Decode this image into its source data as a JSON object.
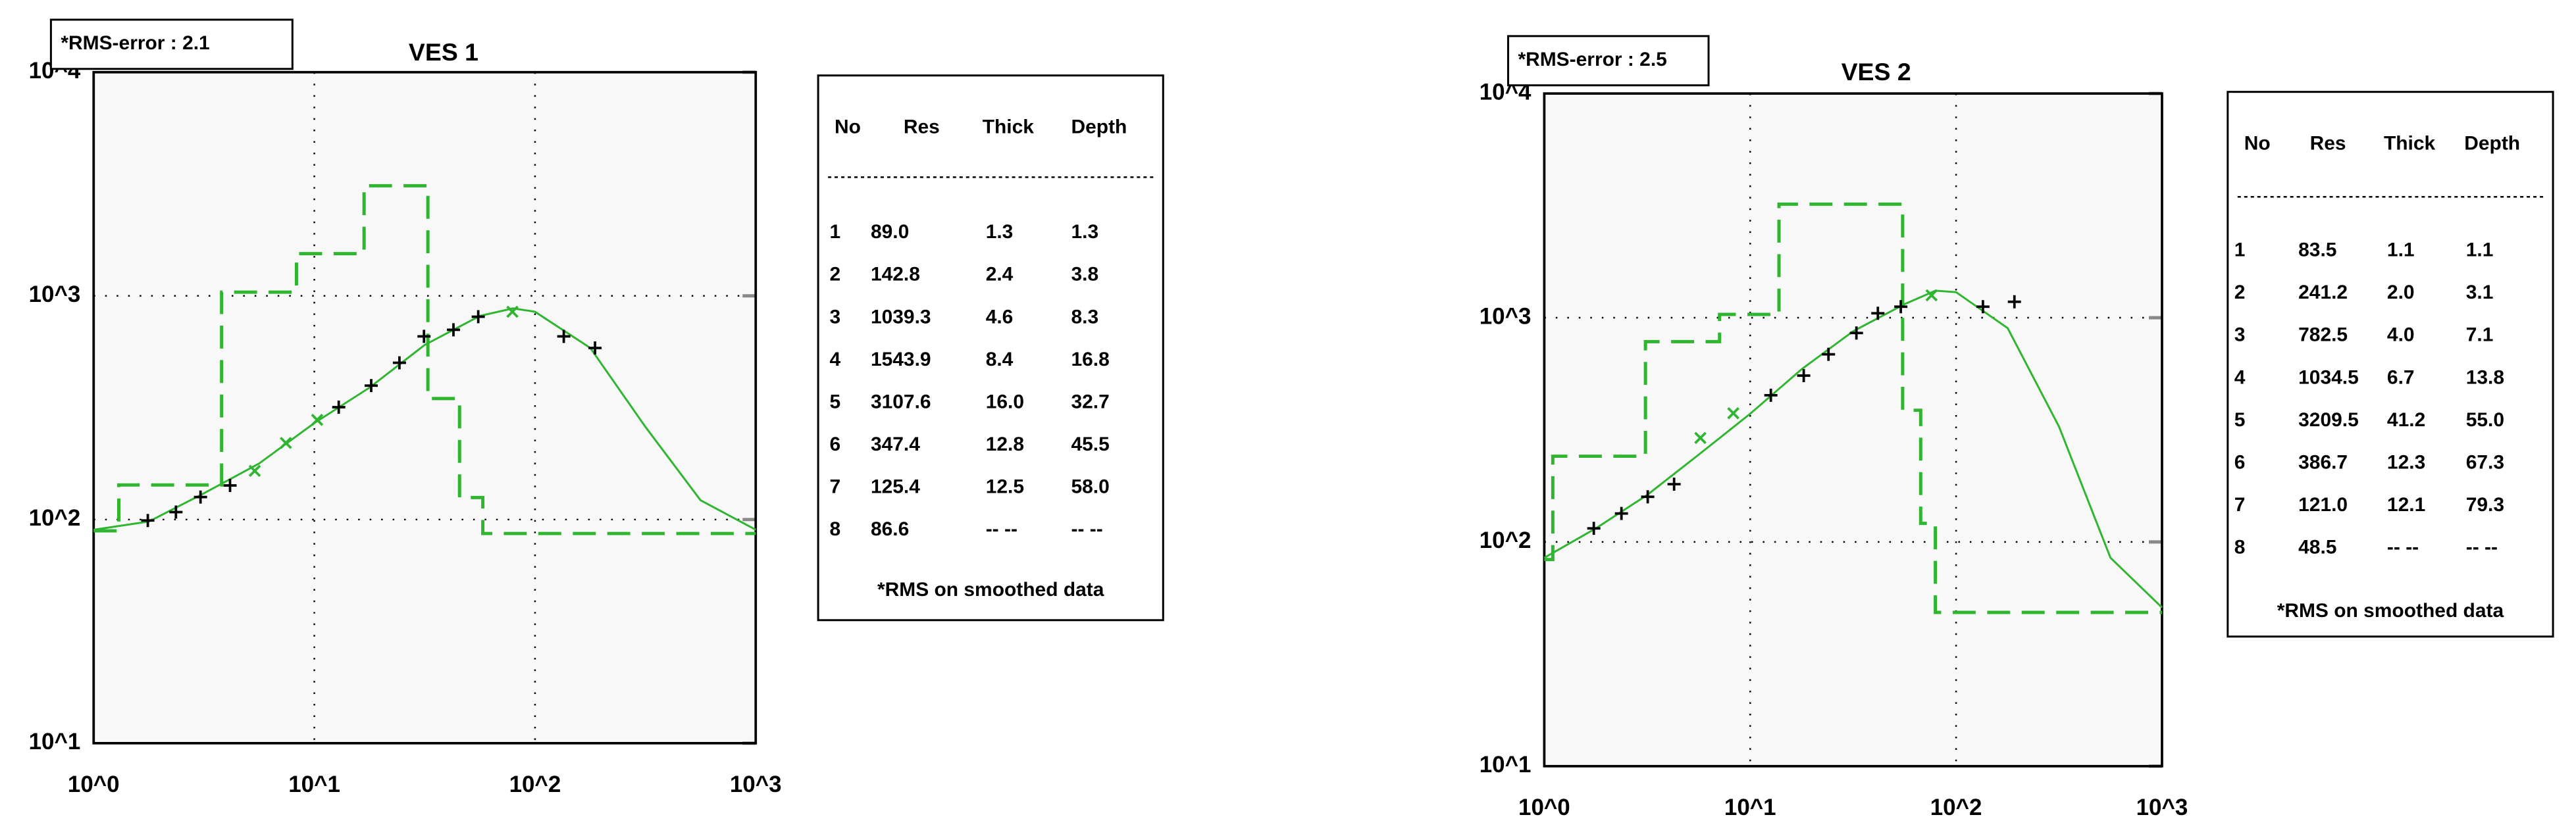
{
  "chart_data": [
    {
      "type": "line",
      "title": "VES 1",
      "annotation": "*RMS-error : 2.1",
      "xscale": "log",
      "yscale": "log",
      "grid": true,
      "xlim": [
        1,
        1000
      ],
      "ylim": [
        10,
        10000
      ],
      "xticks": [
        {
          "value": 1,
          "label": "10^0"
        },
        {
          "value": 10,
          "label": "10^1"
        },
        {
          "value": 100,
          "label": "10^2"
        },
        {
          "value": 1000,
          "label": "10^3"
        }
      ],
      "yticks": [
        {
          "value": 10,
          "label": "10^1"
        },
        {
          "value": 100,
          "label": "10^2"
        },
        {
          "value": 1000,
          "label": "10^3"
        },
        {
          "value": 10000,
          "label": "10^4"
        }
      ],
      "series": [
        {
          "color": "#2fb52f",
          "line": "dashed",
          "marker": "none",
          "x": [
            1,
            1.3,
            1.3,
            3.8,
            3.8,
            8.3,
            8.3,
            16.8,
            16.8,
            32.7,
            32.7,
            45.5,
            45.5,
            58,
            58,
            1000
          ],
          "values": [
            89,
            89,
            142.8,
            142.8,
            1039.3,
            1039.3,
            1543.9,
            1543.9,
            3107.6,
            3107.6,
            347.4,
            347.4,
            125.4,
            125.4,
            86.6,
            86.6
          ]
        },
        {
          "color": "#2fb52f",
          "line": "solid",
          "marker": "none",
          "x": [
            1,
            1.78,
            3.16,
            5.62,
            10,
            17.8,
            31.6,
            56.2,
            79.4,
            100,
            178,
            316,
            562,
            1000
          ],
          "values": [
            90,
            98,
            131,
            178,
            270,
            389,
            603,
            813,
            879,
            849,
            585,
            260,
            122,
            90
          ]
        },
        {
          "color": "#2fb52f",
          "line": "none",
          "marker": "x",
          "x": [
            5.37,
            7.43,
            10.3,
            79
          ],
          "values": [
            165,
            220,
            279,
            849
          ]
        },
        {
          "color": "#000000",
          "line": "none",
          "marker": "+",
          "x": [
            1.76,
            2.36,
            3.05,
            4.15,
            12.9,
            18.1,
            24.3,
            31.4,
            42.7,
            55.3,
            135,
            187
          ],
          "values": [
            99,
            108,
            126,
            142,
            318,
            397,
            502,
            659,
            705,
            807,
            659,
            585
          ]
        }
      ],
      "table": {
        "columns": [
          "No",
          "Res",
          "Thick",
          "Depth"
        ],
        "rows": [
          [
            "1",
            "89.0",
            "1.3",
            "1.3"
          ],
          [
            "2",
            "142.8",
            "2.4",
            "3.8"
          ],
          [
            "3",
            "1039.3",
            "4.6",
            "8.3"
          ],
          [
            "4",
            "1543.9",
            "8.4",
            "16.8"
          ],
          [
            "5",
            "3107.6",
            "16.0",
            "32.7"
          ],
          [
            "6",
            "347.4",
            "12.8",
            "45.5"
          ],
          [
            "7",
            "125.4",
            "12.5",
            "58.0"
          ],
          [
            "8",
            "86.6",
            "-- --",
            "-- --"
          ]
        ],
        "note": "*RMS on smoothed data"
      }
    },
    {
      "type": "line",
      "title": "VES 2",
      "annotation": "*RMS-error : 2.5",
      "xscale": "log",
      "yscale": "log",
      "grid": true,
      "xlim": [
        1,
        1000
      ],
      "ylim": [
        10,
        10000
      ],
      "xticks": [
        {
          "value": 1,
          "label": "10^0"
        },
        {
          "value": 10,
          "label": "10^1"
        },
        {
          "value": 100,
          "label": "10^2"
        },
        {
          "value": 1000,
          "label": "10^3"
        }
      ],
      "yticks": [
        {
          "value": 10,
          "label": "10^1"
        },
        {
          "value": 100,
          "label": "10^2"
        },
        {
          "value": 1000,
          "label": "10^3"
        },
        {
          "value": 10000,
          "label": "10^4"
        }
      ],
      "series": [
        {
          "color": "#2fb52f",
          "line": "dashed",
          "marker": "none",
          "x": [
            1,
            1.1,
            1.1,
            3.1,
            3.1,
            7.1,
            7.1,
            13.8,
            13.8,
            55,
            55,
            67.3,
            67.3,
            79.3,
            79.3,
            1000
          ],
          "values": [
            83.5,
            83.5,
            241.2,
            241.2,
            782.5,
            782.5,
            1034.5,
            1034.5,
            3209.5,
            3209.5,
            386.7,
            386.7,
            121,
            121,
            48.5,
            48.5
          ]
        },
        {
          "color": "#2fb52f",
          "line": "solid",
          "marker": "none",
          "x": [
            1,
            1.78,
            3.16,
            5.62,
            10,
            17.8,
            31.6,
            56.2,
            79.4,
            100,
            178,
            316,
            562,
            1000
          ],
          "values": [
            85,
            115,
            162,
            245,
            373,
            590,
            870,
            1150,
            1320,
            1300,
            899,
            327,
            85,
            51
          ]
        },
        {
          "color": "#2fb52f",
          "line": "none",
          "marker": "x",
          "x": [
            5.73,
            8.28,
            76
          ],
          "values": [
            291,
            375,
            1259
          ]
        },
        {
          "color": "#000000",
          "line": "none",
          "marker": "+",
          "x": [
            1.74,
            2.37,
            3.18,
            4.27,
            12.6,
            18.2,
            24,
            32.8,
            41.7,
            53.9,
            135,
            192
          ],
          "values": [
            115,
            134,
            159,
            181,
            451,
            552,
            687,
            855,
            1047,
            1120,
            1120,
            1178
          ]
        }
      ],
      "table": {
        "columns": [
          "No",
          "Res",
          "Thick",
          "Depth"
        ],
        "rows": [
          [
            "1",
            "83.5",
            "1.1",
            "1.1"
          ],
          [
            "2",
            "241.2",
            "2.0",
            "3.1"
          ],
          [
            "3",
            "782.5",
            "4.0",
            "7.1"
          ],
          [
            "4",
            "1034.5",
            "6.7",
            "13.8"
          ],
          [
            "5",
            "3209.5",
            "41.2",
            "55.0"
          ],
          [
            "6",
            "386.7",
            "12.3",
            "67.3"
          ],
          [
            "7",
            "121.0",
            "12.1",
            "79.3"
          ],
          [
            "8",
            "48.5",
            "-- --",
            "-- --"
          ]
        ],
        "note": "*RMS on smoothed data"
      }
    }
  ]
}
